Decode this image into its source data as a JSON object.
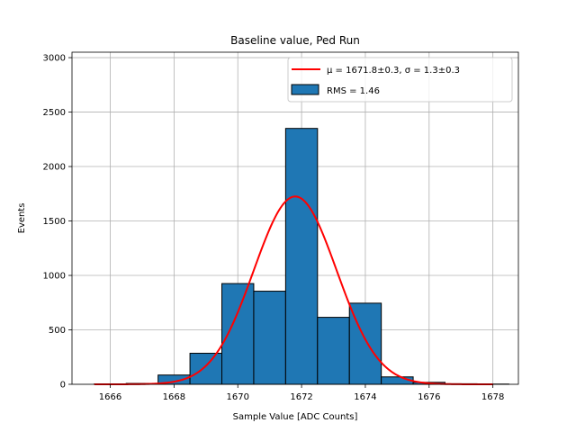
{
  "chart_data": {
    "type": "bar",
    "title": "Baseline value, Ped Run",
    "xlabel": "Sample Value [ADC Counts]",
    "ylabel": "Events",
    "xlim": [
      1664.8,
      1678.8
    ],
    "ylim": [
      0,
      3050
    ],
    "grid": true,
    "legend_position": "top-right",
    "x_ticks": [
      1666,
      1668,
      1670,
      1672,
      1674,
      1676,
      1678
    ],
    "y_ticks": [
      0,
      500,
      1000,
      1500,
      2000,
      2500,
      3000
    ],
    "bin_width": 1,
    "histogram": {
      "name": "RMS = 1.46",
      "color": "#1f77b4",
      "edge_color": "#000000",
      "bins": [
        {
          "left": 1665.5,
          "value": 3
        },
        {
          "left": 1666.5,
          "value": 8
        },
        {
          "left": 1667.5,
          "value": 85
        },
        {
          "left": 1668.5,
          "value": 285
        },
        {
          "left": 1669.5,
          "value": 925
        },
        {
          "left": 1670.5,
          "value": 855
        },
        {
          "left": 1671.5,
          "value": 2350
        },
        {
          "left": 1672.5,
          "value": 615
        },
        {
          "left": 1673.5,
          "value": 745
        },
        {
          "left": 1674.5,
          "value": 68
        },
        {
          "left": 1675.5,
          "value": 18
        },
        {
          "left": 1676.5,
          "value": 5
        },
        {
          "left": 1677.5,
          "value": 2
        }
      ]
    },
    "fit": {
      "name": "μ = 1671.8±0.3, σ = 1.3±0.3",
      "color": "#ff0000",
      "type": "gaussian",
      "amplitude": 1725,
      "mean": 1671.8,
      "sigma": 1.3,
      "x_range": [
        1665.5,
        1678
      ]
    }
  }
}
